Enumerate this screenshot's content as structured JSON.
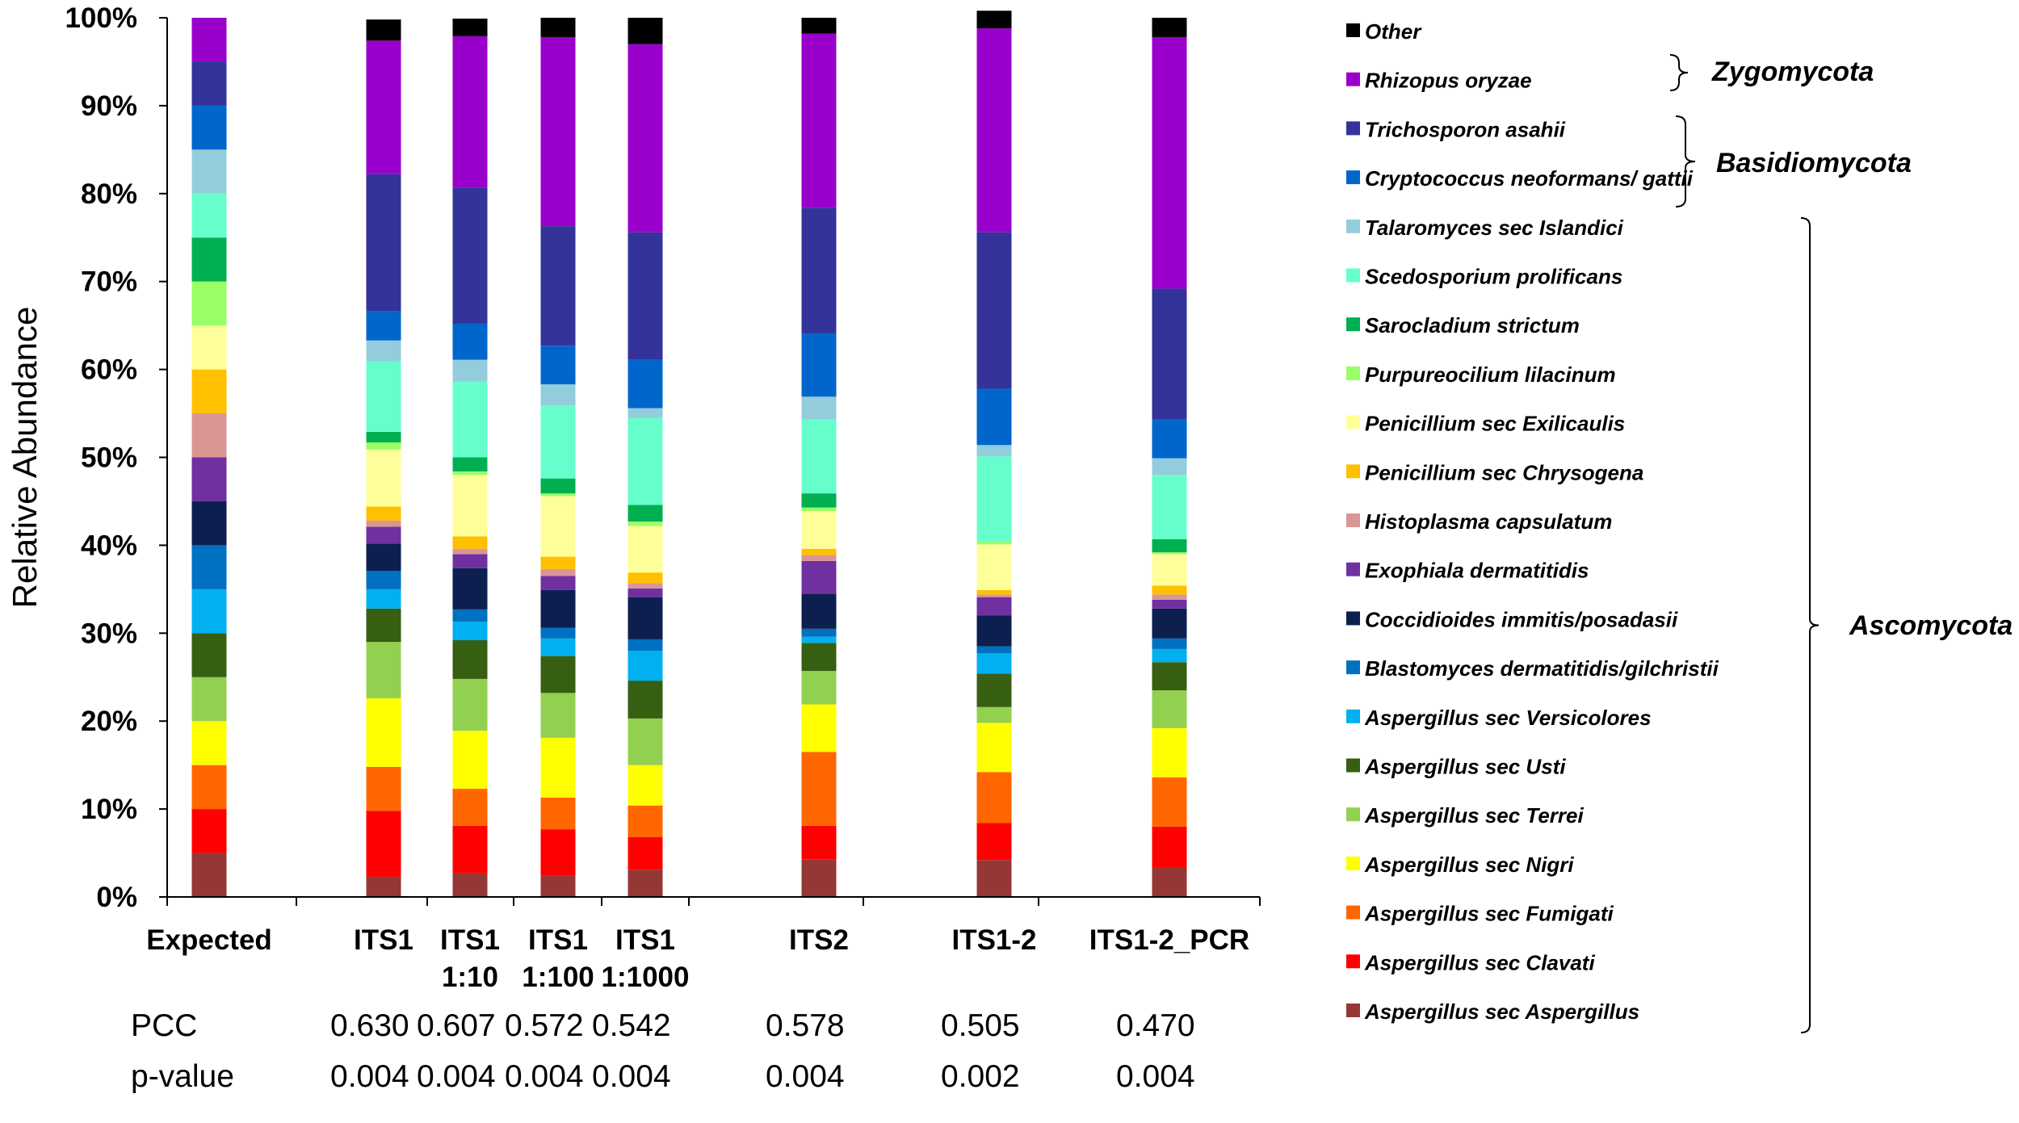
{
  "chart_data": {
    "type": "bar",
    "stacked": true,
    "percent": true,
    "ylabel": "Relative Abundance",
    "ylim": [
      0,
      100
    ],
    "yticks": [
      "0%",
      "10%",
      "20%",
      "30%",
      "40%",
      "50%",
      "60%",
      "70%",
      "80%",
      "90%",
      "100%"
    ],
    "categories": [
      {
        "label": [
          "Expected"
        ]
      },
      {
        "label": [
          "ITS1"
        ]
      },
      {
        "label": [
          "ITS1",
          "1:10"
        ]
      },
      {
        "label": [
          "ITS1",
          "1:100"
        ]
      },
      {
        "label": [
          "ITS1",
          "1:1000"
        ]
      },
      {
        "label": [
          "ITS2"
        ]
      },
      {
        "label": [
          "ITS1-2"
        ]
      },
      {
        "label": [
          "ITS1-2_PCR"
        ]
      }
    ],
    "series": [
      {
        "name": "Aspergillus sec Aspergillus",
        "color": "#953735",
        "values": [
          5,
          2.3,
          2.7,
          2.4,
          3.1,
          4.3,
          4.2,
          3.4
        ]
      },
      {
        "name": "Aspergillus sec Clavati",
        "color": "#ff0000",
        "values": [
          5,
          7.5,
          5.4,
          5.3,
          3.7,
          3.8,
          4.2,
          4.6
        ]
      },
      {
        "name": "Aspergillus sec Fumigati",
        "color": "#ff6600",
        "values": [
          5,
          5,
          4.2,
          3.6,
          3.6,
          8.4,
          5.8,
          5.6
        ]
      },
      {
        "name": "Aspergillus sec Nigri",
        "color": "#ffff00",
        "values": [
          5,
          7.8,
          6.6,
          6.8,
          4.6,
          5.4,
          5.6,
          5.6
        ]
      },
      {
        "name": "Aspergillus sec Terrei",
        "color": "#92d050",
        "values": [
          5,
          6.4,
          5.9,
          5.1,
          5.3,
          3.8,
          1.8,
          4.3
        ]
      },
      {
        "name": "Aspergillus sec Usti",
        "color": "#375f12",
        "values": [
          5,
          3.8,
          4.4,
          4.2,
          4.3,
          3.2,
          3.8,
          3.2
        ]
      },
      {
        "name": "Aspergillus sec Versicolores",
        "color": "#00b0f0",
        "values": [
          5,
          2.2,
          2.1,
          2,
          3.4,
          0.7,
          2.3,
          1.5
        ]
      },
      {
        "name": "Blastomyces dermatitidis/gilchristii",
        "color": "#0070c0",
        "values": [
          5,
          2.1,
          1.4,
          1.2,
          1.3,
          0.9,
          0.8,
          1.2
        ]
      },
      {
        "name": "Coccidioides immitis/posadasii",
        "color": "#0d1f4f",
        "values": [
          5,
          3.1,
          4.7,
          4.3,
          4.8,
          4,
          3.5,
          3.4
        ]
      },
      {
        "name": "Exophiala dermatitidis",
        "color": "#7030a0",
        "values": [
          5,
          1.9,
          1.6,
          1.6,
          1,
          3.7,
          2.1,
          1
        ]
      },
      {
        "name": "Histoplasma capsulatum",
        "color": "#d99694",
        "values": [
          5,
          0.7,
          0.6,
          0.8,
          0.6,
          0.7,
          0.3,
          0.6
        ]
      },
      {
        "name": "Penicillium  sec Chrysogena",
        "color": "#ffc000",
        "values": [
          5,
          1.6,
          1.4,
          1.4,
          1.2,
          0.7,
          0.5,
          1
        ]
      },
      {
        "name": "Penicillium sec Exilicaulis",
        "color": "#ffff99",
        "values": [
          5,
          6.5,
          7,
          6.9,
          5.3,
          4.3,
          5.2,
          3.6
        ]
      },
      {
        "name": "Purpureocilium lilacinum",
        "color": "#99ff66",
        "values": [
          5,
          0.8,
          0.4,
          0.3,
          0.5,
          0.4,
          0.3,
          0.2
        ]
      },
      {
        "name": "Sarocladium strictum",
        "color": "#00b050",
        "values": [
          5,
          1.2,
          1.6,
          1.7,
          1.9,
          1.6,
          0,
          1.5
        ]
      },
      {
        "name": "Scedosporium prolificans",
        "color": "#66ffcc",
        "values": [
          5,
          8,
          8.6,
          8.3,
          9.9,
          8.4,
          9.7,
          7.3
        ]
      },
      {
        "name": "Talaromyces sec Islandici",
        "color": "#93cddd",
        "values": [
          5,
          2.4,
          2.5,
          2.4,
          1.1,
          2.6,
          1.3,
          1.9
        ]
      },
      {
        "name": "Cryptococcus neoformans/ gattii",
        "color": "#0066cc",
        "values": [
          5,
          3.3,
          4.1,
          4.4,
          5.5,
          7.2,
          6.4,
          4.4
        ]
      },
      {
        "name": "Trichosporon asahii",
        "color": "#333399",
        "values": [
          5,
          15.6,
          15.5,
          13.6,
          14.5,
          14.3,
          17.8,
          14.9
        ]
      },
      {
        "name": "Rhizopus oryzae",
        "color": "#9900cc",
        "values": [
          5,
          15.2,
          17.2,
          21.5,
          21.4,
          19.8,
          23.2,
          28.6
        ]
      },
      {
        "name": "Other",
        "color": "#000000",
        "values": [
          0,
          2.4,
          2,
          2.2,
          3,
          1.8,
          2,
          2.2
        ]
      }
    ],
    "stats": {
      "labels": [
        "PCC",
        "p-value"
      ],
      "pcc": [
        "0.630",
        "0.607",
        "0.572",
        "0.542",
        "0.578",
        "0.505",
        "0.470"
      ],
      "pvalue": [
        "0.004",
        "0.004",
        "0.004",
        "0.004",
        "0.004",
        "0.002",
        "0.004"
      ]
    },
    "legend_placement": "right",
    "groups": [
      {
        "label": "Zygomycota",
        "members": [
          "Rhizopus oryzae"
        ]
      },
      {
        "label": "Basidiomycota",
        "members": [
          "Trichosporon asahii",
          "Cryptococcus neoformans/ gattii"
        ]
      },
      {
        "label": "Ascomycota",
        "members": [
          "Talaromyces sec Islandici",
          "Aspergillus sec Aspergillus"
        ]
      }
    ],
    "grid": false
  }
}
